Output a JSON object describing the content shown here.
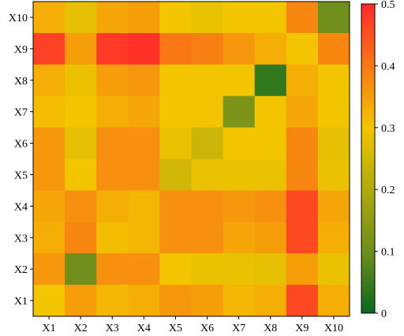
{
  "chart_data": {
    "type": "heatmap",
    "title": "",
    "xlabel": "",
    "ylabel": "",
    "x_categories": [
      "X1",
      "X2",
      "X3",
      "X4",
      "X5",
      "X6",
      "X7",
      "X8",
      "X9",
      "X10"
    ],
    "y_categories": [
      "X10",
      "X9",
      "X8",
      "X7",
      "X6",
      "X5",
      "X4",
      "X3",
      "X2",
      "X1"
    ],
    "values": [
      [
        0.33,
        0.28,
        0.34,
        0.35,
        0.3,
        0.29,
        0.3,
        0.3,
        0.38,
        0.1
      ],
      [
        0.47,
        0.35,
        0.48,
        0.49,
        0.4,
        0.39,
        0.36,
        0.33,
        0.3,
        0.38
      ],
      [
        0.33,
        0.29,
        0.35,
        0.36,
        0.3,
        0.3,
        0.3,
        0.04,
        0.33,
        0.3
      ],
      [
        0.31,
        0.3,
        0.33,
        0.34,
        0.3,
        0.3,
        0.12,
        0.3,
        0.34,
        0.3
      ],
      [
        0.36,
        0.28,
        0.37,
        0.37,
        0.29,
        0.24,
        0.3,
        0.3,
        0.38,
        0.28
      ],
      [
        0.36,
        0.3,
        0.37,
        0.37,
        0.25,
        0.29,
        0.29,
        0.29,
        0.38,
        0.29
      ],
      [
        0.34,
        0.37,
        0.33,
        0.32,
        0.37,
        0.37,
        0.36,
        0.37,
        0.46,
        0.34
      ],
      [
        0.33,
        0.38,
        0.31,
        0.32,
        0.37,
        0.37,
        0.34,
        0.35,
        0.46,
        0.33
      ],
      [
        0.36,
        0.1,
        0.37,
        0.37,
        0.3,
        0.29,
        0.29,
        0.28,
        0.35,
        0.29
      ],
      [
        0.3,
        0.35,
        0.32,
        0.33,
        0.36,
        0.35,
        0.32,
        0.33,
        0.46,
        0.33
      ]
    ],
    "colorbar": {
      "range": [
        0,
        0.5
      ],
      "ticks": [
        "0",
        "0.1",
        "0.2",
        "0.3",
        "0.4",
        "0.5"
      ],
      "colormap": [
        "#0a6a1e",
        "#6f8e1b",
        "#f2c500",
        "#ff2a2a"
      ],
      "colormap_stops": [
        0,
        0.2,
        0.6,
        1.0
      ]
    },
    "grid": false,
    "legend": "colorbar-right"
  }
}
